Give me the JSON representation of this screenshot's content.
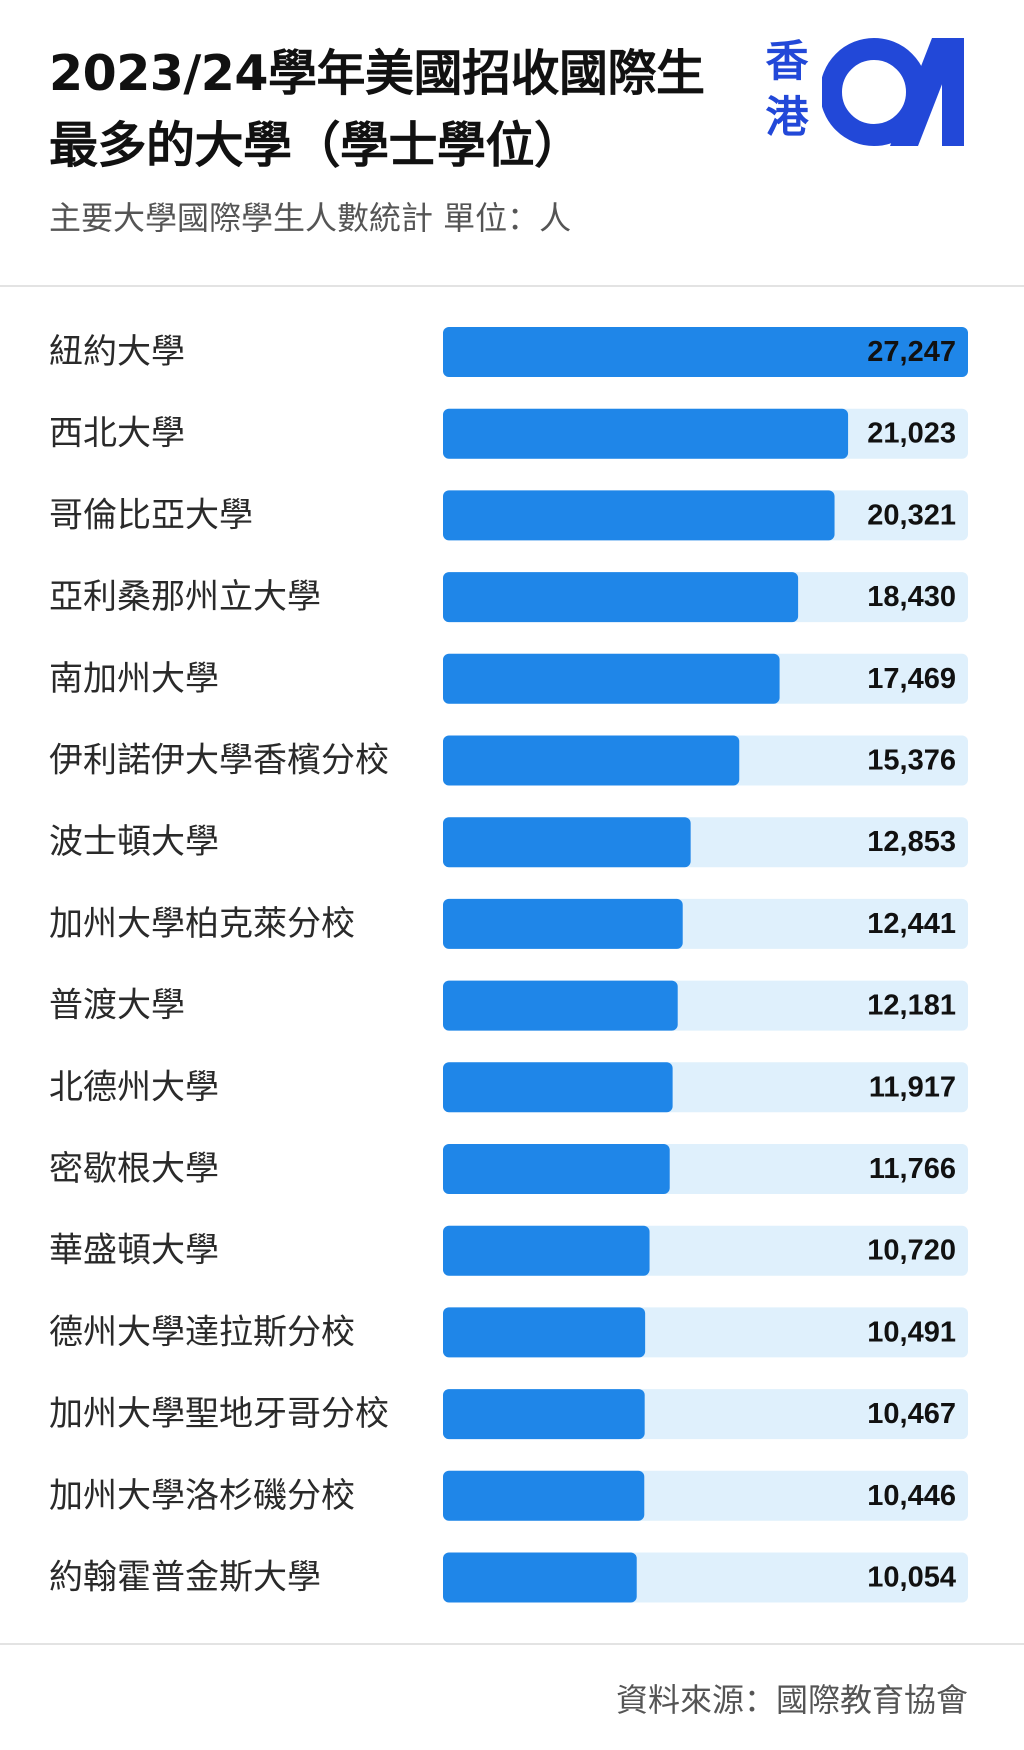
{
  "header": {
    "title": "2023/24學年美國招收國際生最多的大學（學士學位）",
    "subtitle": "主要大學國際學生人數統計 單位：人"
  },
  "logo": {
    "text_top": "香",
    "text_bottom": "港",
    "mark": "01",
    "color": "#2248d8"
  },
  "colors": {
    "bar": "#1f86e8",
    "track": "#dff0fc"
  },
  "chart_data": {
    "type": "bar",
    "orientation": "horizontal",
    "title": "2023/24學年美國招收國際生最多的大學（學士學位）",
    "subtitle": "主要大學國際學生人數統計 單位：人",
    "unit": "人",
    "xlim": [
      0,
      27247
    ],
    "grid": false,
    "legend": "none",
    "categories": [
      "紐約大學",
      "西北大學",
      "哥倫比亞大學",
      "亞利桑那州立大學",
      "南加州大學",
      "伊利諾伊大學香檳分校",
      "波士頓大學",
      "加州大學柏克萊分校",
      "普渡大學",
      "北德州大學",
      "密歇根大學",
      "華盛頓大學",
      "德州大學達拉斯分校",
      "加州大學聖地牙哥分校",
      "加州大學洛杉磯分校",
      "約翰霍普金斯大學"
    ],
    "values": [
      27247,
      21023,
      20321,
      18430,
      17469,
      15376,
      12853,
      12441,
      12181,
      11917,
      11766,
      10720,
      10491,
      10467,
      10446,
      10054
    ],
    "value_labels": [
      "27,247",
      "21,023",
      "20,321",
      "18,430",
      "17,469",
      "15,376",
      "12,853",
      "12,441",
      "12,181",
      "11,917",
      "11,766",
      "10,720",
      "10,491",
      "10,467",
      "10,446",
      "10,054"
    ]
  },
  "footer": {
    "source": "資料來源：國際教育協會"
  }
}
